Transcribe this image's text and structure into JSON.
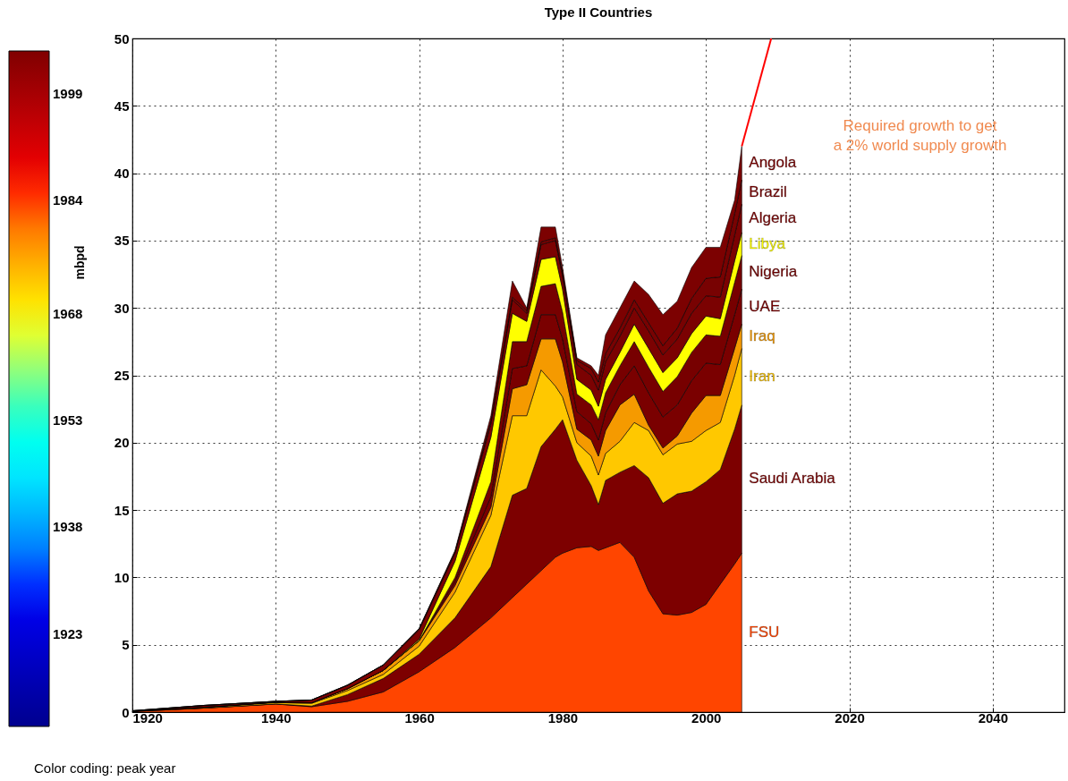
{
  "chart_data": {
    "type": "area",
    "stacked": true,
    "title": "Type II Countries",
    "ylabel": "mbpd",
    "x": [
      1920,
      1930,
      1940,
      1945,
      1950,
      1955,
      1960,
      1965,
      1970,
      1973,
      1975,
      1977,
      1979,
      1980,
      1982,
      1984,
      1985,
      1986,
      1988,
      1990,
      1992,
      1994,
      1996,
      1998,
      2000,
      2002,
      2004,
      2005
    ],
    "series": [
      {
        "name": "FSU",
        "color": "#ff4500",
        "values": [
          0.05,
          0.3,
          0.6,
          0.4,
          0.8,
          1.5,
          3,
          4.8,
          7,
          8.5,
          9.5,
          10.5,
          11.5,
          11.8,
          12.2,
          12.3,
          12,
          12.2,
          12.6,
          11.5,
          9,
          7.3,
          7.2,
          7.4,
          8,
          9.5,
          11,
          11.8
        ]
      },
      {
        "name": "Saudi Arabia",
        "color": "#7d0000",
        "values": [
          0,
          0,
          0.01,
          0.05,
          0.5,
          1,
          1.3,
          2.2,
          3.8,
          7.6,
          7.1,
          9.2,
          9.5,
          9.9,
          6.5,
          4.5,
          3.4,
          5,
          5.2,
          6.8,
          8.4,
          8.2,
          9,
          9,
          9.1,
          8.5,
          10,
          11
        ]
      },
      {
        "name": "Iran",
        "color": "#ffc800",
        "values": [
          0.02,
          0.05,
          0.1,
          0.2,
          0.3,
          0.3,
          0.6,
          1.9,
          3.8,
          5.9,
          5.4,
          5.7,
          3.2,
          1.7,
          1.3,
          2.2,
          2.2,
          2,
          2.3,
          3.2,
          3.5,
          3.6,
          3.7,
          3.7,
          3.8,
          3.5,
          4,
          4.2
        ]
      },
      {
        "name": "Iraq",
        "color": "#f59a00",
        "values": [
          0,
          0.02,
          0.03,
          0.05,
          0.14,
          0.3,
          0.4,
          0.5,
          0.6,
          2,
          2.3,
          2.3,
          3.5,
          2.6,
          1,
          1.2,
          1.4,
          1.7,
          2.7,
          2.1,
          0.4,
          0.5,
          0.6,
          2.1,
          2.6,
          2,
          2,
          1.8
        ]
      },
      {
        "name": "UAE",
        "color": "#7a0000",
        "values": [
          0,
          0,
          0,
          0,
          0,
          0,
          0,
          0.3,
          0.8,
          1.5,
          1.4,
          1.8,
          1.8,
          1.7,
          1.3,
          1.2,
          1.2,
          1.3,
          1.5,
          2.1,
          2.4,
          2.3,
          2.3,
          2.4,
          2.4,
          2.3,
          2.5,
          2.6
        ]
      },
      {
        "name": "Nigeria",
        "color": "#770000",
        "values": [
          0,
          0,
          0,
          0,
          0,
          0,
          0.02,
          0.3,
          1.1,
          2,
          1.8,
          2.1,
          2.3,
          2,
          1.3,
          1.4,
          1.5,
          1.5,
          1.4,
          1.8,
          1.9,
          1.9,
          2.1,
          2.1,
          2.1,
          2.1,
          2.4,
          2.5
        ]
      },
      {
        "name": "Libya",
        "color": "#ffff00",
        "values": [
          0,
          0,
          0,
          0,
          0,
          0,
          0.1,
          1.2,
          3.3,
          2.1,
          1.5,
          2,
          2,
          1.7,
          1.1,
          1.1,
          1,
          1,
          1,
          1.3,
          1.4,
          1.4,
          1.4,
          1.4,
          1.4,
          1.3,
          1.6,
          1.7
        ]
      },
      {
        "name": "Algeria",
        "color": "#7b0202",
        "values": [
          0.03,
          0.13,
          0.06,
          0.2,
          0.26,
          0.4,
          0.7,
          0.6,
          1,
          1,
          0.6,
          1.1,
          1.2,
          1,
          1.1,
          1.1,
          1.2,
          1.3,
          1.2,
          1.2,
          1.3,
          1.3,
          1.4,
          1.5,
          1.5,
          1.6,
          1.9,
          2.1
        ]
      },
      {
        "name": "Brazil",
        "color": "#780202",
        "values": [
          0,
          0,
          0,
          0,
          0,
          0,
          0.08,
          0.1,
          0.2,
          0.2,
          0.2,
          0.2,
          0.2,
          0.2,
          0.3,
          0.5,
          0.6,
          0.6,
          0.6,
          0.6,
          0.6,
          0.7,
          0.8,
          1.1,
          1.3,
          1.5,
          1.6,
          1.8
        ]
      },
      {
        "name": "Angola",
        "color": "#7c0101",
        "values": [
          0,
          0,
          0,
          0,
          0,
          0,
          0,
          0.1,
          0.4,
          1.2,
          0.2,
          1.1,
          0.8,
          0.4,
          0.2,
          0.2,
          0.5,
          1.4,
          1.5,
          1.4,
          2.1,
          2.3,
          2,
          2.3,
          2.3,
          2.2,
          1,
          2.5
        ]
      },
      {
        "type": "line",
        "color": "#ff0000",
        "x": [
          2005,
          2009.1
        ],
        "values": [
          42,
          50
        ]
      }
    ],
    "xlim": [
      1920,
      2050
    ],
    "xticks": [
      1920,
      1940,
      1960,
      1980,
      2000,
      2020,
      2040
    ],
    "ylim": [
      0,
      50
    ],
    "yticks": [
      0,
      5,
      10,
      15,
      20,
      25,
      30,
      35,
      40,
      45,
      50
    ],
    "grid": true,
    "legend": false,
    "clim": [
      1910,
      2005
    ],
    "cticks": [
      1923,
      1938,
      1953,
      1968,
      1984,
      1999
    ],
    "annotations": [
      "Required growth to get\na 2% world supply growth",
      "Color coding: peak year"
    ]
  }
}
